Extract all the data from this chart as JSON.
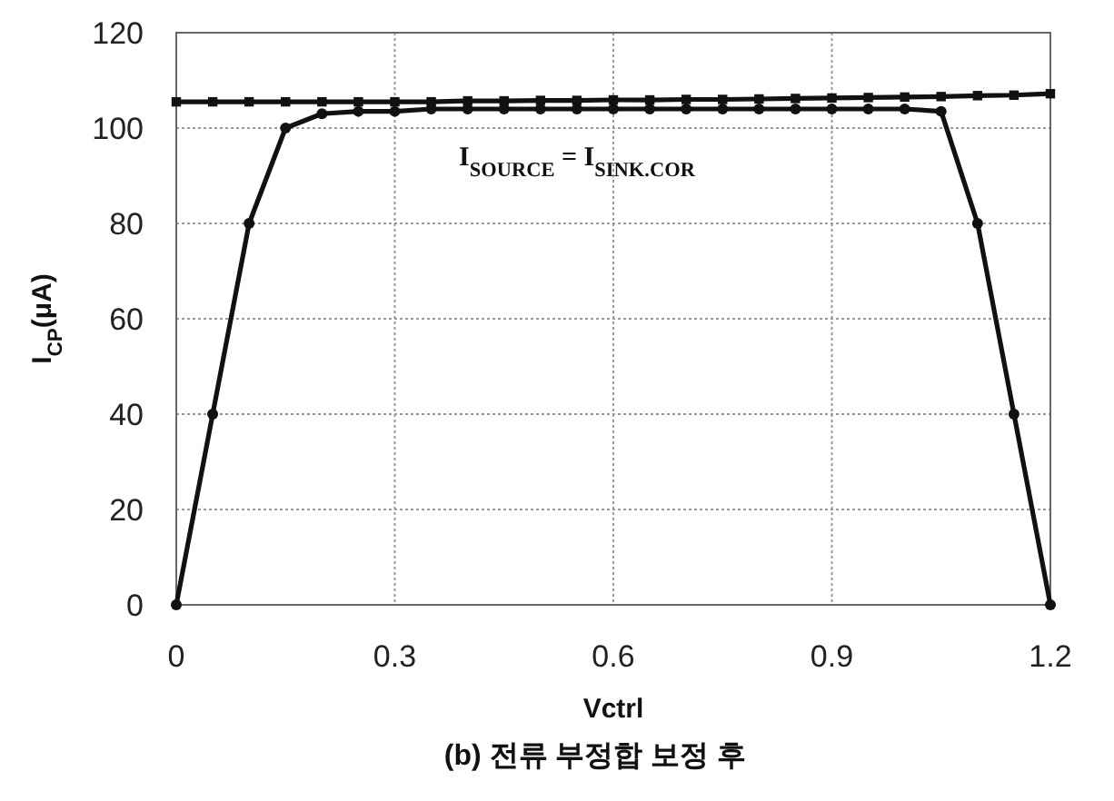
{
  "chart_data": {
    "type": "line",
    "title": "(b) 전류 부정합 보정 후",
    "xlabel": "Vctrl",
    "ylabel": "I$_{CP}$(μA)",
    "annotations": [
      "I$_{SOURCE}$ = I$_{SINK.COR}$"
    ],
    "x": [
      0,
      0.05,
      0.1,
      0.15,
      0.2,
      0.25,
      0.3,
      0.35,
      0.4,
      0.45,
      0.5,
      0.55,
      0.6,
      0.65,
      0.7,
      0.75,
      0.8,
      0.85,
      0.9,
      0.95,
      1.0,
      1.05,
      1.1,
      1.15,
      1.2
    ],
    "series": [
      {
        "color": "#111111",
        "marker": "circle",
        "values": [
          0,
          40,
          80,
          100,
          103,
          103.5,
          103.5,
          104,
          104,
          104,
          104,
          104,
          104,
          104,
          104,
          104,
          104,
          104,
          104,
          104,
          104,
          103.5,
          80,
          40,
          0
        ]
      },
      {
        "color": "#111111",
        "marker": "square",
        "values": [
          105.5,
          105.5,
          105.5,
          105.5,
          105.5,
          105.5,
          105.5,
          105.5,
          105.7,
          105.7,
          105.8,
          105.8,
          105.9,
          105.9,
          106,
          106,
          106.1,
          106.2,
          106.3,
          106.4,
          106.5,
          106.6,
          106.8,
          106.9,
          107.2
        ]
      }
    ],
    "xlim": [
      0,
      1.2
    ],
    "xticks": [
      0,
      0.3,
      0.6,
      0.9,
      1.2
    ],
    "ylim": [
      0,
      120
    ],
    "yticks": [
      0,
      20,
      40,
      60,
      80,
      100,
      120
    ],
    "grid": true,
    "line_style": "solid"
  }
}
